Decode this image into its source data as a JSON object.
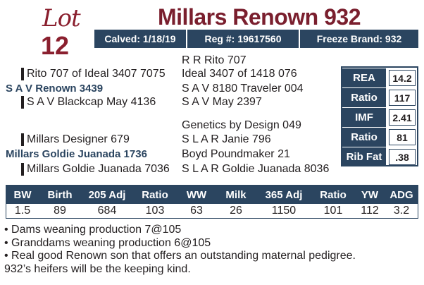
{
  "lot": {
    "word": "Lot",
    "number": "12"
  },
  "animal": {
    "name": "Millars Renown 932",
    "calved": "Calved: 1/18/19",
    "reg": "Reg #: 19617560",
    "freeze_brand": "Freeze Brand: 932"
  },
  "pedigree": {
    "sire_sire_sire": "R R Rito 707",
    "sire_sire": "Rito 707 of Ideal 3407 7075",
    "sire_sire_dam": "Ideal 3407 of 1418 076",
    "sire": "S A V Renown 3439",
    "sire_dam_sire": "S A V 8180 Traveler 004",
    "sire_dam": "S A V Blackcap May 4136",
    "sire_dam_dam": "S A V May 2397",
    "dam_sire_sire": "Genetics by Design 049",
    "dam_sire": "Millars Designer 679",
    "dam_sire_dam": "S L A R Janie 796",
    "dam": "Millars Goldie Juanada 1736",
    "dam_dam_sire": "Boyd Poundmaker 21",
    "dam_dam": "Millars Goldie Juanada 7036",
    "dam_dam_dam": "S L A R Goldie Juanada 8036"
  },
  "carcass": [
    {
      "label": "REA",
      "value": "14.2"
    },
    {
      "label": "Ratio",
      "value": "117"
    },
    {
      "label": "IMF",
      "value": "2.41"
    },
    {
      "label": "Ratio",
      "value": "81"
    },
    {
      "label": "Rib Fat",
      "value": ".38"
    }
  ],
  "performance": {
    "headers": [
      "BW",
      "Birth",
      "205 Adj",
      "Ratio",
      "WW",
      "Milk",
      "365 Adj",
      "Ratio",
      "YW",
      "ADG"
    ],
    "values": [
      "1.5",
      "89",
      "684",
      "103",
      "63",
      "26",
      "1150",
      "101",
      "112",
      "3.2"
    ]
  },
  "notes": [
    "• Dams weaning production 7@105",
    "• Granddams weaning production 6@105",
    "• Real good Renown son that offers an outstanding maternal pedigree.",
    "932’s heifers will be the keeping kind."
  ],
  "colors": {
    "title": "#7a1f2e",
    "navy": "#2b4560",
    "text": "#231f20"
  }
}
